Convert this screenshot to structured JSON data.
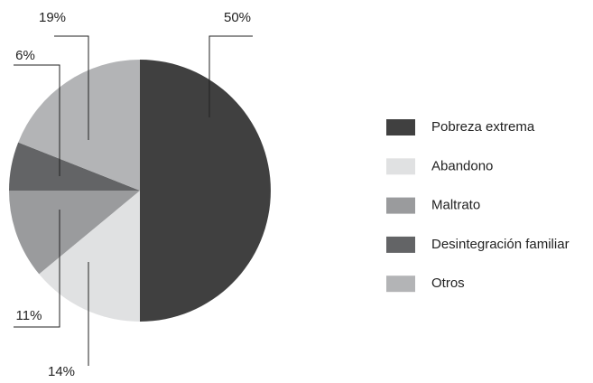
{
  "chart_data": {
    "type": "pie",
    "categories": [
      "Pobreza extrema",
      "Abandono",
      "Maltrato",
      "Desintegración familiar",
      "Otros"
    ],
    "values": [
      50,
      14,
      11,
      6,
      19
    ],
    "value_labels": [
      "50%",
      "14%",
      "11%",
      "6%",
      "19%"
    ],
    "colors": [
      "#404040",
      "#e0e1e2",
      "#9a9b9d",
      "#636466",
      "#b3b4b6"
    ],
    "legend": "right"
  }
}
